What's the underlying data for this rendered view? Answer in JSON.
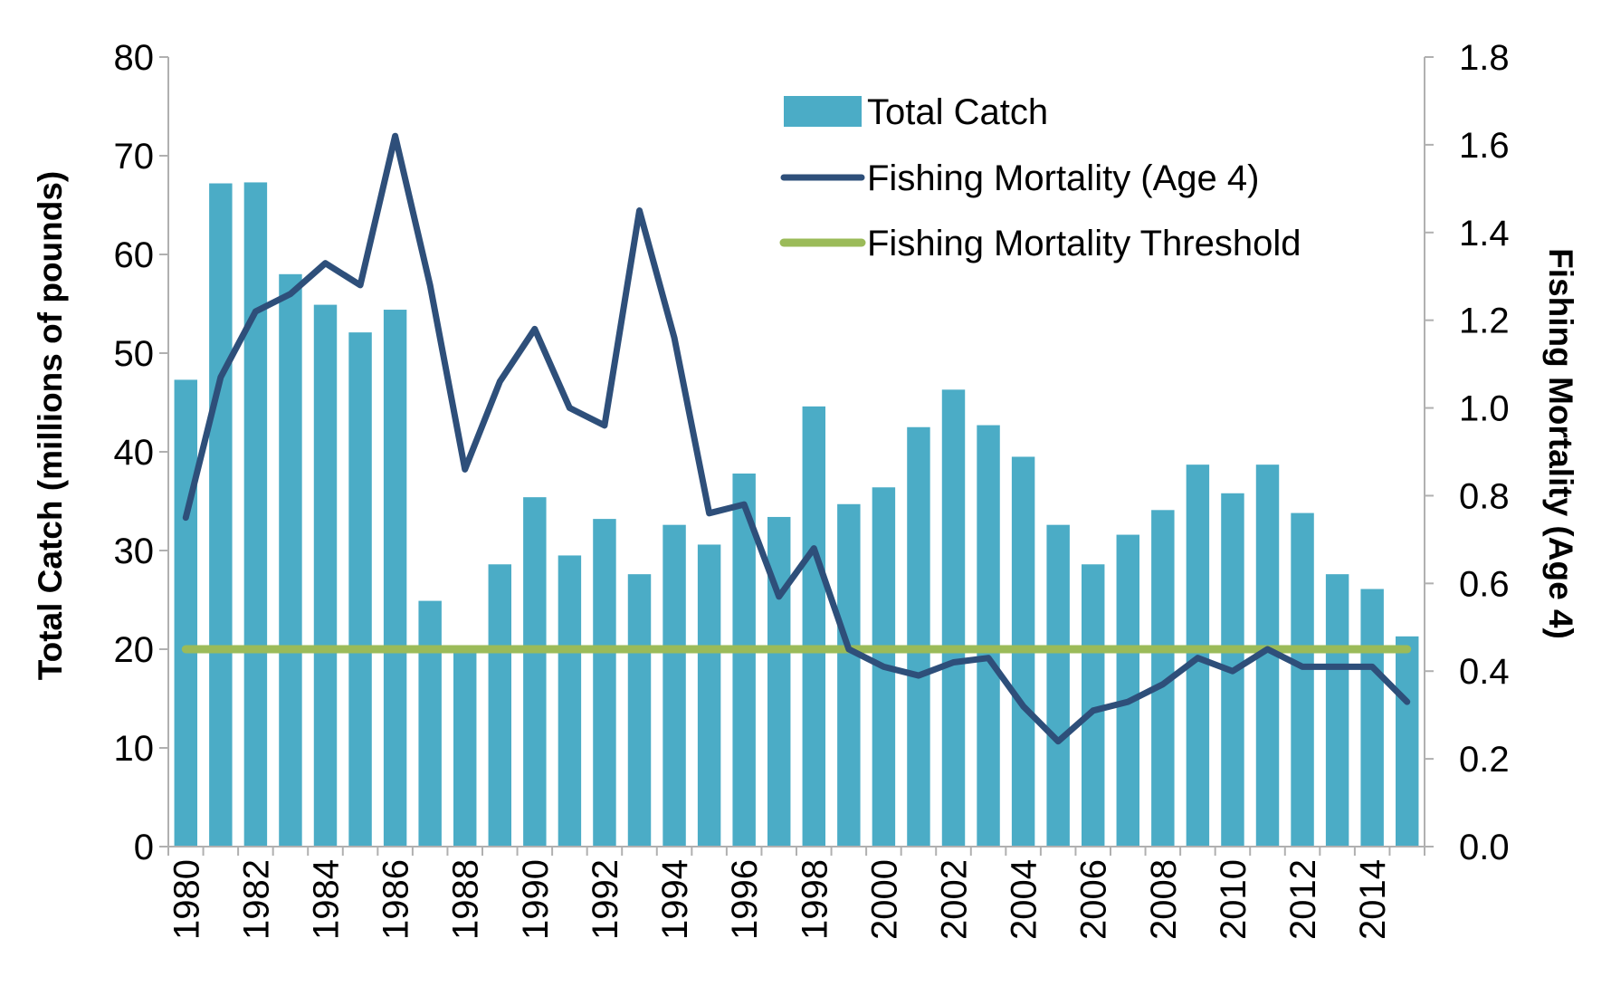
{
  "chart_data": {
    "type": "bar",
    "title": "",
    "xlabel": "",
    "ylabel": "Total Catch  (millions of pounds)",
    "y2label": "Fishing Mortality (Age 4)",
    "ylim": [
      0,
      80
    ],
    "y2lim": [
      0,
      1.8
    ],
    "yticks": [
      "0",
      "10",
      "20",
      "30",
      "40",
      "50",
      "60",
      "70",
      "80"
    ],
    "y2ticks": [
      "0.0",
      "0.2",
      "0.4",
      "0.6",
      "0.8",
      "1.0",
      "1.2",
      "1.4",
      "1.6",
      "1.8"
    ],
    "x": [
      1980,
      1981,
      1982,
      1983,
      1984,
      1985,
      1986,
      1987,
      1988,
      1989,
      1990,
      1991,
      1992,
      1993,
      1994,
      1995,
      1996,
      1997,
      1998,
      1999,
      2000,
      2001,
      2002,
      2003,
      2004,
      2005,
      2006,
      2007,
      2008,
      2009,
      2010,
      2011,
      2012,
      2013,
      2014,
      2015
    ],
    "xtick_labels": [
      "1980",
      "1982",
      "1984",
      "1986",
      "1988",
      "1990",
      "1992",
      "1994",
      "1996",
      "1998",
      "2000",
      "2002",
      "2004",
      "2006",
      "2008",
      "2010",
      "2012",
      "2014"
    ],
    "grid": false,
    "legend_position": "top-right",
    "series": [
      {
        "name": "Total Catch",
        "type": "bar",
        "axis": "left",
        "color": "#4BACC6",
        "values": [
          47.3,
          67.2,
          67.3,
          58.0,
          54.9,
          52.1,
          54.4,
          24.9,
          20.0,
          28.6,
          35.4,
          29.5,
          33.2,
          27.6,
          32.6,
          30.6,
          37.8,
          33.4,
          44.6,
          34.7,
          36.4,
          42.5,
          46.3,
          42.7,
          39.5,
          32.6,
          28.6,
          31.6,
          34.1,
          38.7,
          35.8,
          38.7,
          33.8,
          27.6,
          26.1,
          21.3
        ]
      },
      {
        "name": "Fishing Mortality (Age 4)",
        "type": "line",
        "axis": "right",
        "color": "#2E4F7A",
        "values": [
          0.75,
          1.07,
          1.22,
          1.26,
          1.33,
          1.28,
          1.62,
          1.28,
          0.86,
          1.06,
          1.18,
          1.0,
          0.96,
          1.45,
          1.16,
          0.76,
          0.78,
          0.57,
          0.68,
          0.45,
          0.41,
          0.39,
          0.42,
          0.43,
          0.32,
          0.24,
          0.31,
          0.33,
          0.37,
          0.43,
          0.4,
          0.45,
          0.41,
          0.41,
          0.41,
          0.33
        ]
      },
      {
        "name": "Fishing Mortality Threshold",
        "type": "line",
        "axis": "right",
        "color": "#9BBB59",
        "values": [
          0.45,
          0.45,
          0.45,
          0.45,
          0.45,
          0.45,
          0.45,
          0.45,
          0.45,
          0.45,
          0.45,
          0.45,
          0.45,
          0.45,
          0.45,
          0.45,
          0.45,
          0.45,
          0.45,
          0.45,
          0.45,
          0.45,
          0.45,
          0.45,
          0.45,
          0.45,
          0.45,
          0.45,
          0.45,
          0.45,
          0.45,
          0.45,
          0.45,
          0.45,
          0.45,
          0.45
        ]
      }
    ]
  }
}
